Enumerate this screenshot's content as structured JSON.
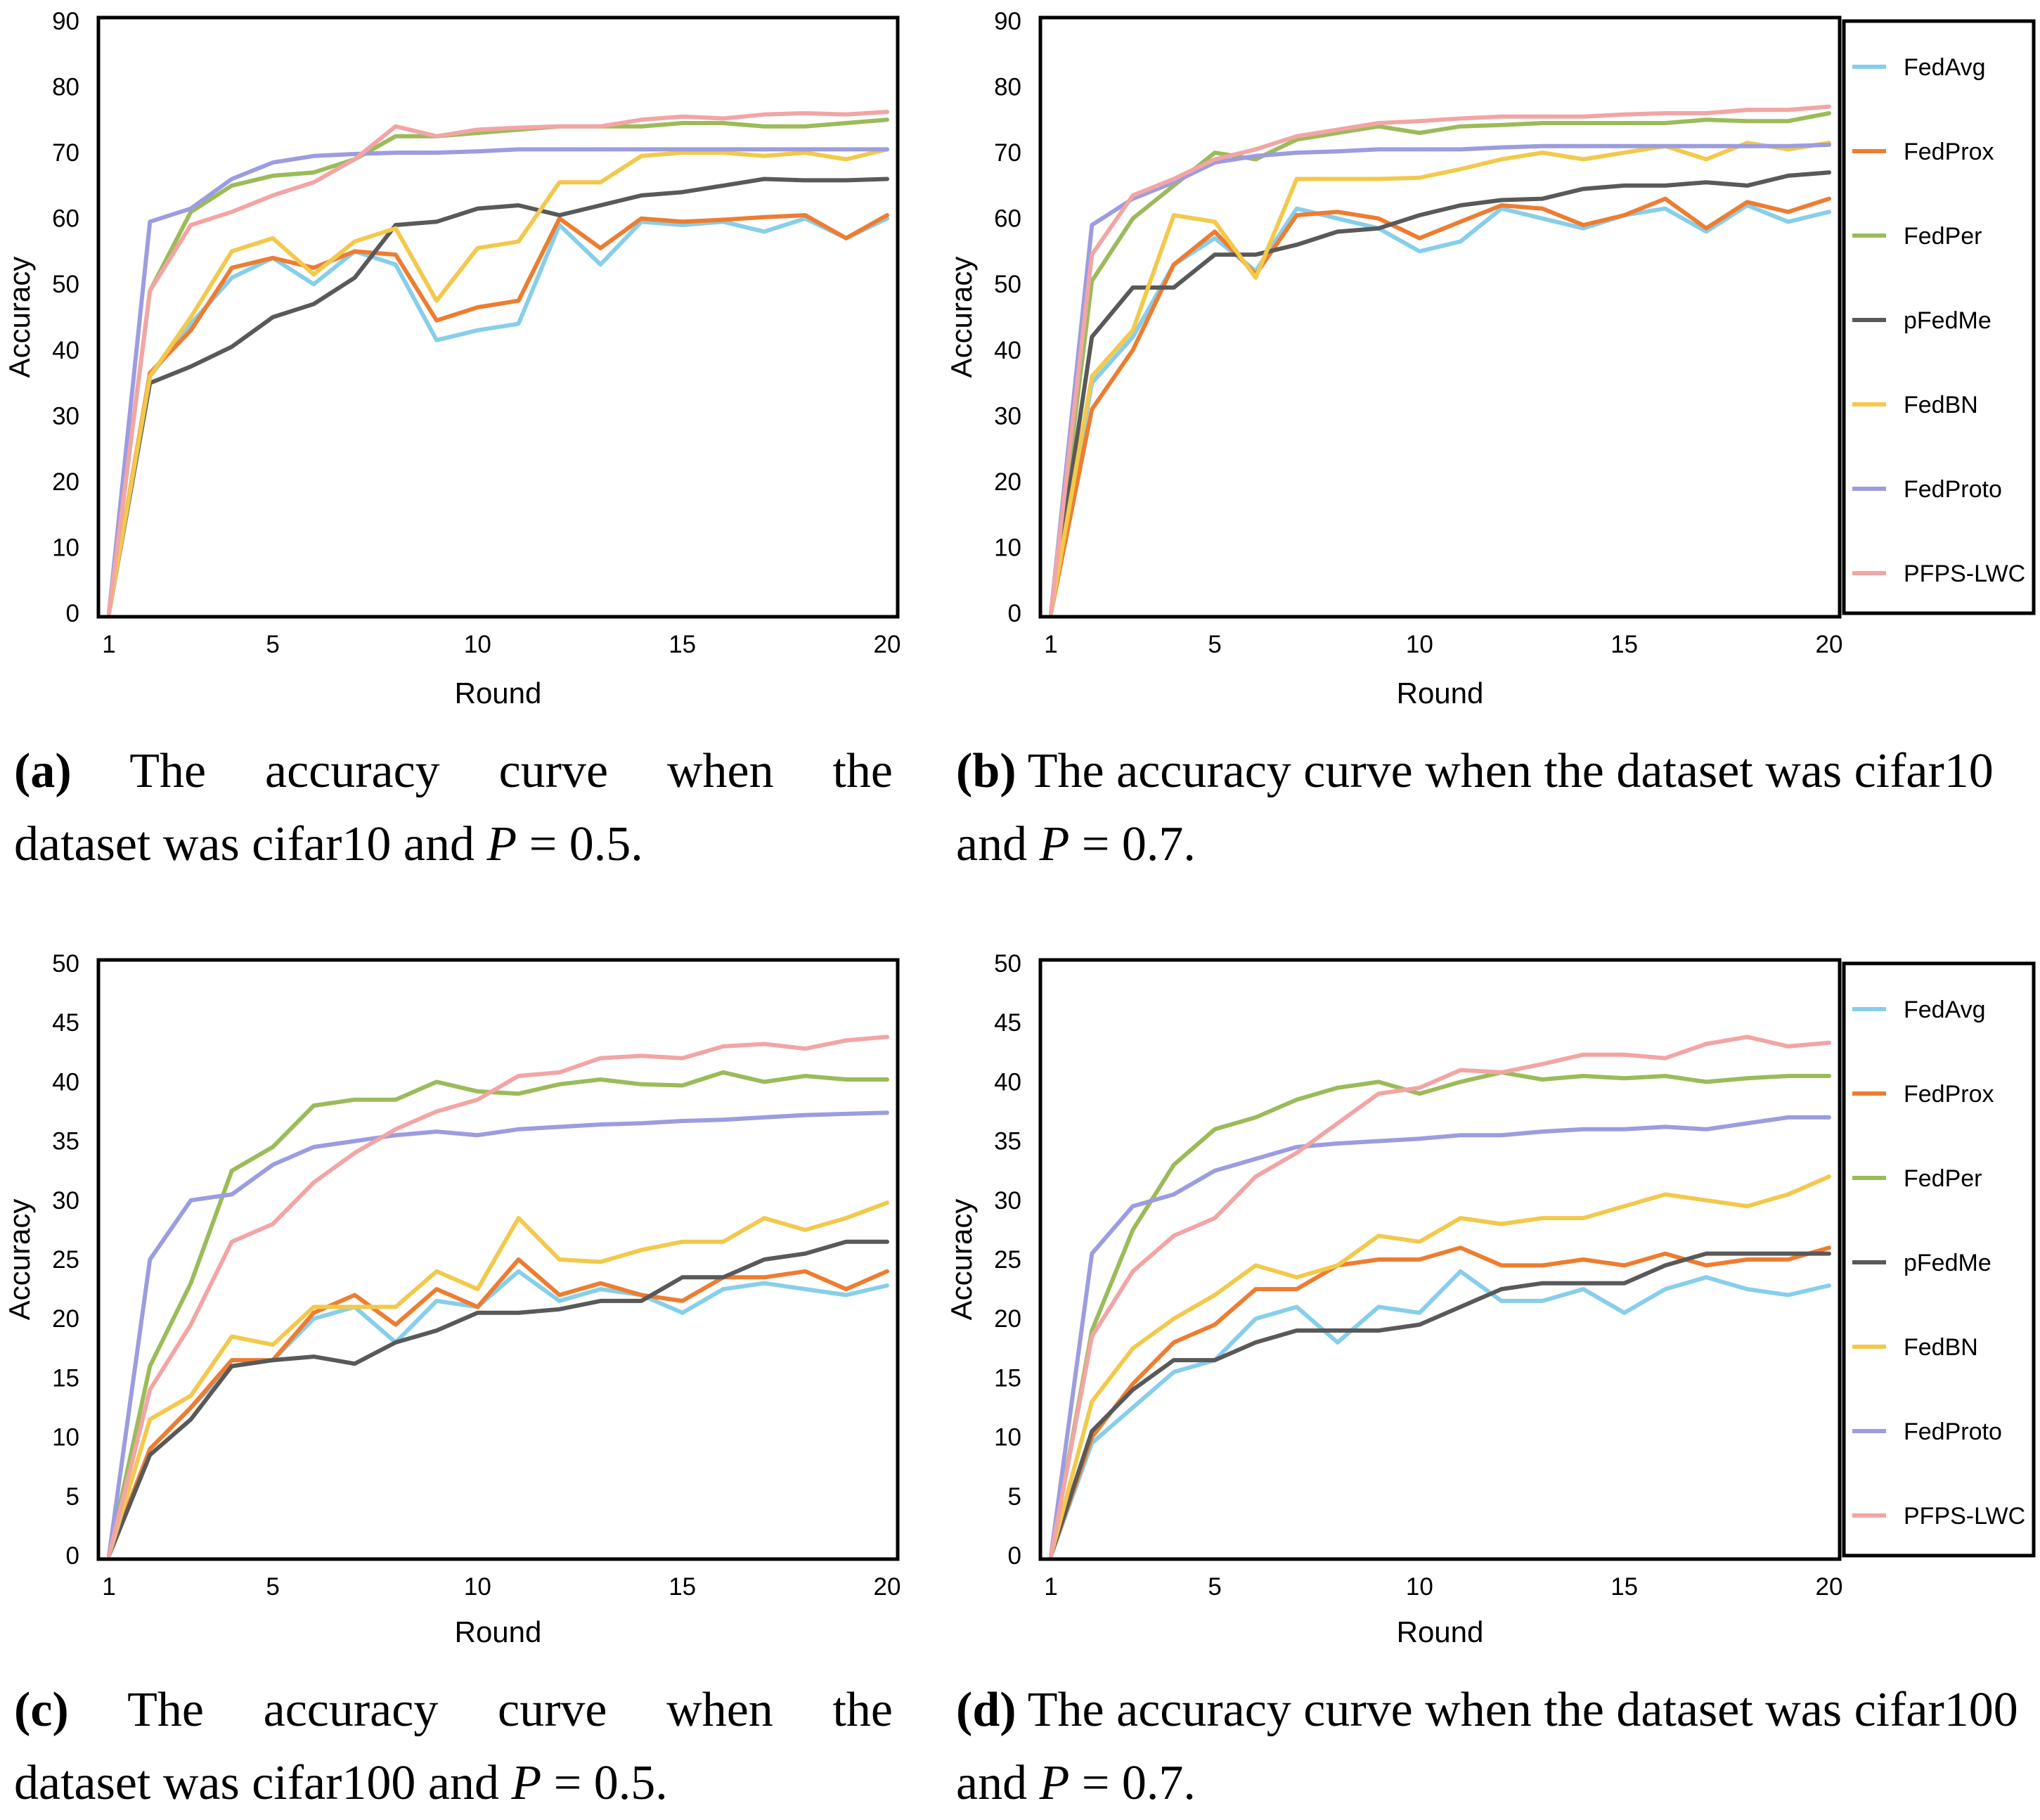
{
  "colors": {
    "FedAvg": "#87CEEB",
    "FedProx": "#ED7D31",
    "FedPer": "#9BBB59",
    "pFedMe": "#595959",
    "FedBN": "#F2C94C",
    "FedProto": "#9C9CE0",
    "PFPS-LWC": "#F2A5A5"
  },
  "legend_labels": [
    "FedAvg",
    "FedProx",
    "FedPer",
    "pFedMe",
    "FedBN",
    "FedProto",
    "PFPS-LWC"
  ],
  "captions": {
    "a": {
      "tag": "a",
      "text_before": "The accuracy curve when the dataset was cifar10 and ",
      "var": "P",
      "text_after": " = 0.5."
    },
    "b": {
      "tag": "b",
      "text_before": "The accuracy curve when the dataset was cifar10 and ",
      "var": "P",
      "text_after": " = 0.7."
    },
    "c": {
      "tag": "c",
      "text_before": "The accuracy curve when the dataset was cifar100 and ",
      "var": "P",
      "text_after": " = 0.5."
    },
    "d": {
      "tag": "d",
      "text_before": "The accuracy curve when the dataset was cifar100 and ",
      "var": "P",
      "text_after": " = 0.7."
    }
  },
  "chart_data": [
    {
      "id": "a",
      "type": "line",
      "xlabel": "Round",
      "ylabel": "Accuracy",
      "x": [
        1,
        2,
        3,
        4,
        5,
        6,
        7,
        8,
        9,
        10,
        11,
        12,
        13,
        14,
        15,
        16,
        17,
        18,
        19,
        20
      ],
      "xticks": [
        1,
        5,
        10,
        15,
        20
      ],
      "ylim": [
        0,
        90
      ],
      "yticks": [
        0,
        10,
        20,
        30,
        40,
        50,
        60,
        70,
        80,
        90
      ],
      "legend": false,
      "series": [
        {
          "name": "FedAvg",
          "values": [
            0,
            36,
            44,
            51,
            54,
            50,
            55,
            53,
            41.5,
            43,
            44,
            59,
            53,
            59.5,
            59,
            59.5,
            58,
            60,
            57,
            60
          ]
        },
        {
          "name": "FedProx",
          "values": [
            0,
            36.5,
            43,
            52.5,
            54,
            52.5,
            55,
            54.5,
            44.5,
            46.5,
            47.5,
            60,
            55.5,
            60,
            59.5,
            59.8,
            60.2,
            60.5,
            57,
            60.5
          ]
        },
        {
          "name": "FedPer",
          "values": [
            0,
            49,
            61,
            65,
            66.5,
            67,
            69,
            72.5,
            72.5,
            73,
            73.5,
            74,
            74,
            74,
            74.5,
            74.5,
            74,
            74,
            74.5,
            75
          ]
        },
        {
          "name": "pFedMe",
          "values": [
            0,
            35,
            37.5,
            40.5,
            45,
            47,
            51,
            59,
            59.5,
            61.5,
            62,
            60.5,
            62,
            63.5,
            64,
            65,
            66,
            65.8,
            65.8,
            66
          ]
        },
        {
          "name": "FedBN",
          "values": [
            0,
            36,
            45,
            55,
            57,
            51.5,
            56.5,
            58.5,
            47.5,
            55.5,
            56.5,
            65.5,
            65.5,
            69.5,
            70,
            70,
            69.5,
            70,
            69,
            70.5
          ]
        },
        {
          "name": "FedProto",
          "values": [
            0,
            59.5,
            61.5,
            66,
            68.5,
            69.5,
            69.8,
            70,
            70,
            70.2,
            70.5,
            70.5,
            70.5,
            70.5,
            70.5,
            70.5,
            70.5,
            70.5,
            70.5,
            70.5
          ]
        },
        {
          "name": "PFPS-LWC",
          "values": [
            0,
            49,
            59,
            61,
            63.5,
            65.5,
            69,
            74,
            72.5,
            73.5,
            73.8,
            74,
            74,
            75,
            75.5,
            75.2,
            75.8,
            76,
            75.8,
            76.2
          ]
        }
      ]
    },
    {
      "id": "b",
      "type": "line",
      "xlabel": "Round",
      "ylabel": "Accuracy",
      "x": [
        1,
        2,
        3,
        4,
        5,
        6,
        7,
        8,
        9,
        10,
        11,
        12,
        13,
        14,
        15,
        16,
        17,
        18,
        19,
        20
      ],
      "xticks": [
        1,
        5,
        10,
        15,
        20
      ],
      "ylim": [
        0,
        90
      ],
      "yticks": [
        0,
        10,
        20,
        30,
        40,
        50,
        60,
        70,
        80,
        90
      ],
      "legend": true,
      "legend_position": "right",
      "series": [
        {
          "name": "FedAvg",
          "values": [
            0,
            35,
            42,
            53,
            57,
            52,
            61.5,
            60,
            58.5,
            55,
            56.5,
            61.5,
            60,
            58.5,
            60.5,
            61.5,
            58,
            62,
            59.5,
            61
          ]
        },
        {
          "name": "FedProx",
          "values": [
            0,
            31,
            40,
            53,
            58,
            51.5,
            60.5,
            61,
            60,
            57,
            59.5,
            62,
            61.5,
            59,
            60.5,
            63,
            58.5,
            62.5,
            61,
            63
          ]
        },
        {
          "name": "FedPer",
          "values": [
            0,
            50.5,
            60,
            65,
            70,
            69,
            72,
            73,
            74,
            73,
            74,
            74.2,
            74.5,
            74.5,
            74.5,
            74.5,
            75,
            74.8,
            74.8,
            76
          ]
        },
        {
          "name": "pFedMe",
          "values": [
            0,
            42,
            49.5,
            49.5,
            54.5,
            54.5,
            56,
            58,
            58.5,
            60.5,
            62,
            62.8,
            63,
            64.5,
            65,
            65,
            65.5,
            65,
            66.5,
            67
          ]
        },
        {
          "name": "FedBN",
          "values": [
            0,
            36,
            43,
            60.5,
            59.5,
            51,
            66,
            66,
            66,
            66.2,
            67.5,
            69,
            70,
            69,
            70,
            71,
            69,
            71.5,
            70.5,
            71.5
          ]
        },
        {
          "name": "FedProto",
          "values": [
            0,
            59,
            63,
            65.5,
            68.5,
            69.5,
            70,
            70.2,
            70.5,
            70.5,
            70.5,
            70.8,
            71,
            71,
            71,
            71,
            71,
            71,
            71,
            71.2
          ]
        },
        {
          "name": "PFPS-LWC",
          "values": [
            0,
            54.5,
            63.5,
            66,
            69,
            70.5,
            72.5,
            73.5,
            74.5,
            74.8,
            75.2,
            75.5,
            75.5,
            75.5,
            75.8,
            76,
            76,
            76.5,
            76.5,
            77
          ]
        }
      ]
    },
    {
      "id": "c",
      "type": "line",
      "xlabel": "Round",
      "ylabel": "Accuracy",
      "x": [
        1,
        2,
        3,
        4,
        5,
        6,
        7,
        8,
        9,
        10,
        11,
        12,
        13,
        14,
        15,
        16,
        17,
        18,
        19,
        20
      ],
      "xticks": [
        1,
        5,
        10,
        15,
        20
      ],
      "ylim": [
        0,
        50
      ],
      "yticks": [
        0,
        5,
        10,
        15,
        20,
        25,
        30,
        35,
        40,
        45,
        50
      ],
      "legend": false,
      "series": [
        {
          "name": "FedAvg",
          "values": [
            0,
            9,
            12.5,
            16,
            16.5,
            20,
            21,
            18,
            21.5,
            21,
            24,
            21.5,
            22.5,
            22,
            20.5,
            22.5,
            23,
            22.5,
            22,
            22.8
          ]
        },
        {
          "name": "FedProx",
          "values": [
            0,
            9,
            12.5,
            16.5,
            16.5,
            20.5,
            22,
            19.5,
            22.5,
            21,
            25,
            22,
            23,
            22,
            21.5,
            23.5,
            23.5,
            24,
            22.5,
            24
          ]
        },
        {
          "name": "FedPer",
          "values": [
            0,
            16,
            23,
            32.5,
            34.5,
            38,
            38.5,
            38.5,
            40,
            39.2,
            39,
            39.8,
            40.2,
            39.8,
            39.7,
            40.8,
            40,
            40.5,
            40.2,
            40.2
          ]
        },
        {
          "name": "pFedMe",
          "values": [
            0,
            8.5,
            11.5,
            16,
            16.5,
            16.8,
            16.2,
            18,
            19,
            20.5,
            20.5,
            20.8,
            21.5,
            21.5,
            23.5,
            23.5,
            25,
            25.5,
            26.5,
            26.5
          ]
        },
        {
          "name": "FedBN",
          "values": [
            0,
            11.5,
            13.5,
            18.5,
            17.8,
            21,
            21,
            21,
            24,
            22.5,
            28.5,
            25,
            24.8,
            25.8,
            26.5,
            26.5,
            28.5,
            27.5,
            28.5,
            29.8
          ]
        },
        {
          "name": "FedProto",
          "values": [
            0,
            25,
            30,
            30.5,
            33,
            34.5,
            35,
            35.5,
            35.8,
            35.5,
            36,
            36.2,
            36.4,
            36.5,
            36.7,
            36.8,
            37,
            37.2,
            37.3,
            37.4
          ]
        },
        {
          "name": "PFPS-LWC",
          "values": [
            0,
            14,
            19.5,
            26.5,
            28,
            31.5,
            34,
            36,
            37.5,
            38.5,
            40.5,
            40.8,
            42,
            42.2,
            42,
            43,
            43.2,
            42.8,
            43.5,
            43.8
          ]
        }
      ]
    },
    {
      "id": "d",
      "type": "line",
      "xlabel": "Round",
      "ylabel": "Accuracy",
      "x": [
        1,
        2,
        3,
        4,
        5,
        6,
        7,
        8,
        9,
        10,
        11,
        12,
        13,
        14,
        15,
        16,
        17,
        18,
        19,
        20
      ],
      "xticks": [
        1,
        5,
        10,
        15,
        20
      ],
      "ylim": [
        0,
        50
      ],
      "yticks": [
        0,
        5,
        10,
        15,
        20,
        25,
        30,
        35,
        40,
        45,
        50
      ],
      "legend": true,
      "legend_position": "right",
      "series": [
        {
          "name": "FedAvg",
          "values": [
            0,
            9.5,
            12.5,
            15.5,
            16.5,
            20,
            21,
            18,
            21,
            20.5,
            24,
            21.5,
            21.5,
            22.5,
            20.5,
            22.5,
            23.5,
            22.5,
            22,
            22.8
          ]
        },
        {
          "name": "FedProx",
          "values": [
            0,
            10,
            14.5,
            18,
            19.5,
            22.5,
            22.5,
            24.5,
            25,
            25,
            26,
            24.5,
            24.5,
            25,
            24.5,
            25.5,
            24.5,
            25,
            25,
            26
          ]
        },
        {
          "name": "FedPer",
          "values": [
            0,
            19,
            27.5,
            33,
            36,
            37,
            38.5,
            39.5,
            40,
            39,
            40,
            40.8,
            40.2,
            40.5,
            40.3,
            40.5,
            40,
            40.3,
            40.5,
            40.5
          ]
        },
        {
          "name": "pFedMe",
          "values": [
            0,
            10.5,
            14,
            16.5,
            16.5,
            18,
            19,
            19,
            19,
            19.5,
            21,
            22.5,
            23,
            23,
            23,
            24.5,
            25.5,
            25.5,
            25.5,
            25.5
          ]
        },
        {
          "name": "FedBN",
          "values": [
            0,
            13,
            17.5,
            20,
            22,
            24.5,
            23.5,
            24.5,
            27,
            26.5,
            28.5,
            28,
            28.5,
            28.5,
            29.5,
            30.5,
            30,
            29.5,
            30.5,
            32
          ]
        },
        {
          "name": "FedProto",
          "values": [
            0,
            25.5,
            29.5,
            30.5,
            32.5,
            33.5,
            34.5,
            34.8,
            35,
            35.2,
            35.5,
            35.5,
            35.8,
            36,
            36,
            36.2,
            36,
            36.5,
            37,
            37
          ]
        },
        {
          "name": "PFPS-LWC",
          "values": [
            0,
            18.5,
            24,
            27,
            28.5,
            32,
            34,
            36.5,
            39,
            39.5,
            41,
            40.8,
            41.5,
            42.3,
            42.3,
            42,
            43.2,
            43.8,
            43,
            43.3
          ]
        }
      ]
    }
  ]
}
